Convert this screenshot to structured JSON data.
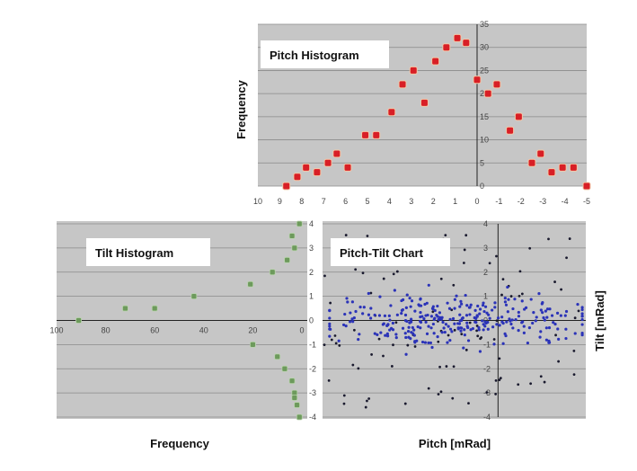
{
  "chart_data": [
    {
      "id": "pitch",
      "type": "scatter",
      "title": "Pitch Histogram",
      "xlabel": "",
      "ylabel": "Frequency",
      "xlim": [
        10,
        -5
      ],
      "ylim": [
        0,
        35
      ],
      "x_ticks": [
        "10",
        "9",
        "8",
        "7",
        "6",
        "5",
        "4",
        "3",
        "2",
        "1",
        "0",
        "-1",
        "-2",
        "-3",
        "-4",
        "-5"
      ],
      "y_ticks": [
        "0",
        "5",
        "10",
        "15",
        "20",
        "25",
        "30",
        "35"
      ],
      "grid": true,
      "marker_color": "#d81f26",
      "points": [
        {
          "x": 8.7,
          "y": 0
        },
        {
          "x": 8.2,
          "y": 2
        },
        {
          "x": 7.8,
          "y": 4
        },
        {
          "x": 7.3,
          "y": 3
        },
        {
          "x": 6.8,
          "y": 5
        },
        {
          "x": 6.4,
          "y": 7
        },
        {
          "x": 5.9,
          "y": 4
        },
        {
          "x": 5.1,
          "y": 11
        },
        {
          "x": 4.6,
          "y": 11
        },
        {
          "x": 3.9,
          "y": 16
        },
        {
          "x": 3.4,
          "y": 22
        },
        {
          "x": 2.9,
          "y": 25
        },
        {
          "x": 2.4,
          "y": 18
        },
        {
          "x": 1.9,
          "y": 27
        },
        {
          "x": 1.4,
          "y": 30
        },
        {
          "x": 0.9,
          "y": 32
        },
        {
          "x": 0.5,
          "y": 31
        },
        {
          "x": 0.0,
          "y": 23
        },
        {
          "x": -0.5,
          "y": 20
        },
        {
          "x": -0.9,
          "y": 22
        },
        {
          "x": -1.5,
          "y": 12
        },
        {
          "x": -1.9,
          "y": 15
        },
        {
          "x": -2.5,
          "y": 5
        },
        {
          "x": -2.9,
          "y": 7
        },
        {
          "x": -3.4,
          "y": 3
        },
        {
          "x": -3.9,
          "y": 4
        },
        {
          "x": -4.4,
          "y": 4
        },
        {
          "x": -5.0,
          "y": 0
        }
      ]
    },
    {
      "id": "tilt",
      "type": "scatter",
      "title": "Tilt Histogram",
      "xlabel": "Frequency",
      "ylabel": "",
      "xlim": [
        100,
        0
      ],
      "ylim": [
        -4,
        4
      ],
      "x_ticks": [
        "100",
        "80",
        "60",
        "40",
        "20",
        "0"
      ],
      "y_ticks": [
        "-4",
        "-3",
        "-2",
        "-1",
        "0",
        "1",
        "2",
        "3",
        "4"
      ],
      "grid": true,
      "marker_color": "#6d9a5c",
      "points": [
        {
          "x": 1,
          "y": 4
        },
        {
          "x": 4,
          "y": 3.5
        },
        {
          "x": 3,
          "y": 3
        },
        {
          "x": 6,
          "y": 2.5
        },
        {
          "x": 12,
          "y": 2
        },
        {
          "x": 21,
          "y": 1.5
        },
        {
          "x": 44,
          "y": 1
        },
        {
          "x": 72,
          "y": 0.5
        },
        {
          "x": 91,
          "y": 0
        },
        {
          "x": 60,
          "y": 0.5
        },
        {
          "x": 20,
          "y": -1
        },
        {
          "x": 10,
          "y": -1.5
        },
        {
          "x": 7,
          "y": -2
        },
        {
          "x": 4,
          "y": -2.5
        },
        {
          "x": 3,
          "y": -3
        },
        {
          "x": 3,
          "y": -3.2
        },
        {
          "x": 2,
          "y": -3.5
        },
        {
          "x": 1,
          "y": -4
        }
      ]
    },
    {
      "id": "pitchtilt",
      "type": "scatter",
      "title": "Pitch-Tilt Chart",
      "xlabel": "Pitch [mRad]",
      "ylabel": "Tilt [mRad]",
      "xlim": [
        10,
        -5
      ],
      "ylim": [
        -4,
        4
      ],
      "y_ticks": [
        "-4",
        "-3",
        "-2",
        "-1",
        "0",
        "1",
        "2",
        "3",
        "4"
      ],
      "grid": true,
      "center_color": "#2b33b8",
      "outer_color": "#1a1a2e",
      "cluster": {
        "x_mean": 2.5,
        "x_spread": 3.5,
        "y_mean": 0.1,
        "y_spread": 0.55,
        "count": 300
      },
      "scatter_outer": {
        "x_range": [
          10,
          -5
        ],
        "y_range": [
          -4,
          4
        ],
        "count": 110
      }
    }
  ]
}
